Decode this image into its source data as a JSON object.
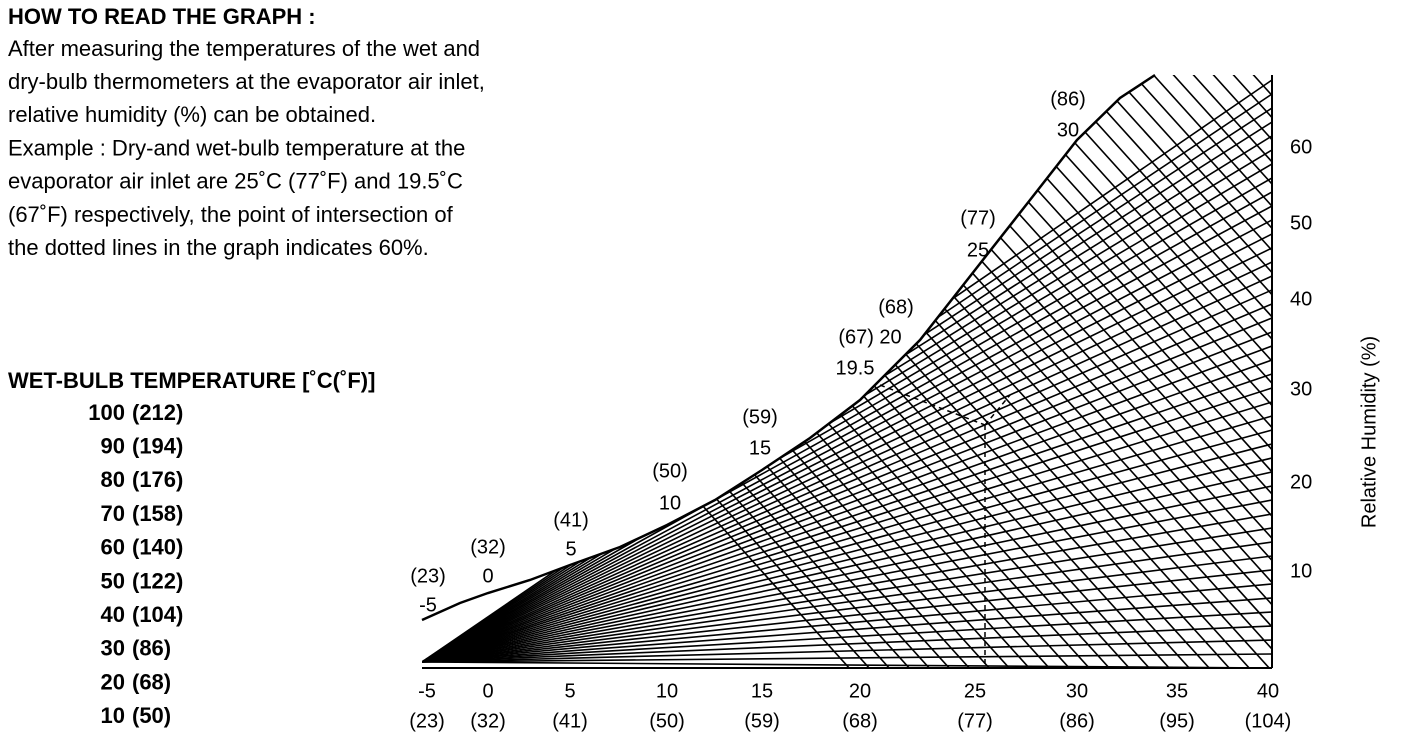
{
  "header": {
    "title": "HOW TO READ THE GRAPH :",
    "lines": [
      "After measuring the temperatures of the wet and",
      "dry-bulb thermometers at the evaporator air inlet,",
      "relative humidity (%) can be obtained.",
      "Example : Dry-and wet-bulb temperature at the",
      "evaporator air inlet are 25˚C (77˚F) and 19.5˚C",
      "(67˚F) respectively, the point of intersection of",
      "the dotted lines in the graph indicates 60%."
    ]
  },
  "wet_bulb": {
    "title": "WET-BULB TEMPERATURE [˚C(˚F)]",
    "rows": [
      [
        "100",
        "(212)"
      ],
      [
        "90",
        "(194)"
      ],
      [
        "80",
        "(176)"
      ],
      [
        "70",
        "(158)"
      ],
      [
        "60",
        "(140)"
      ],
      [
        "50",
        "(122)"
      ],
      [
        "40",
        "(104)"
      ],
      [
        "30",
        "(86)"
      ],
      [
        "20",
        "(68)"
      ],
      [
        "10",
        "(50)"
      ]
    ]
  },
  "dry_bulb_axis": {
    "celsius": [
      "-5",
      "0",
      "5",
      "10",
      "15",
      "20",
      "25",
      "30",
      "35",
      "40"
    ],
    "fahrenheit": [
      "(23)",
      "(32)",
      "(41)",
      "(50)",
      "(59)",
      "(68)",
      "(77)",
      "(86)",
      "(95)",
      "(104)"
    ]
  },
  "rh_axis": {
    "title": "Relative Humidity (%)",
    "ticks": [
      "60",
      "50",
      "40",
      "30",
      "20",
      "10"
    ]
  },
  "curve_labels": [
    "(23)",
    "-5",
    "(32)",
    "0",
    "(41)",
    "5",
    "(50)",
    "10",
    "(59)",
    "15",
    "(68)",
    "(67) 20",
    "19.5",
    "(77)",
    "25",
    "(86)",
    "30"
  ]
}
